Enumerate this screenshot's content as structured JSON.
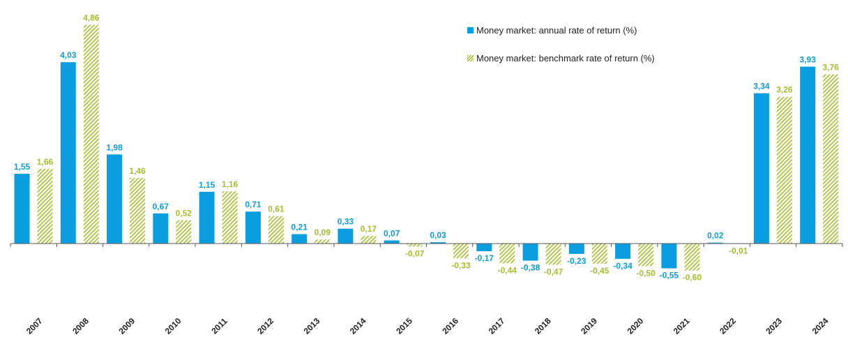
{
  "chart_data": {
    "type": "bar",
    "categories": [
      "2007",
      "2008",
      "2009",
      "2010",
      "2011",
      "2012",
      "2013",
      "2014",
      "2015",
      "2016",
      "2017",
      "2018",
      "2019",
      "2020",
      "2021",
      "2022",
      "2023",
      "2024"
    ],
    "series": [
      {
        "name": "Money market: annual rate of return (%)",
        "color": "#0a9ee0",
        "style": "solid",
        "values": [
          1.55,
          4.03,
          1.98,
          0.67,
          1.15,
          0.71,
          0.21,
          0.33,
          0.07,
          0.03,
          -0.17,
          -0.38,
          -0.23,
          -0.34,
          -0.55,
          0.02,
          3.34,
          3.93
        ],
        "labels": [
          "1,55",
          "4,03",
          "1,98",
          "0,67",
          "1,15",
          "0,71",
          "0,21",
          "0,33",
          "0,07",
          "0,03",
          "-0,17",
          "-0,38",
          "-0,23",
          "-0,34",
          "-0,55",
          "0,02",
          "3,34",
          "3,93"
        ]
      },
      {
        "name": "Money market: benchmark rate of return (%)",
        "color": "#a9bd2c",
        "style": "hatched",
        "values": [
          1.66,
          4.86,
          1.46,
          0.52,
          1.16,
          0.61,
          0.09,
          0.17,
          -0.07,
          -0.33,
          -0.44,
          -0.47,
          -0.45,
          -0.5,
          -0.6,
          -0.01,
          3.26,
          3.76
        ],
        "labels": [
          "1,66",
          "4,86",
          "1,46",
          "0,52",
          "1,16",
          "0,61",
          "0,09",
          "0,17",
          "-0,07",
          "-0,33",
          "-0,44",
          "-0,47",
          "-0,45",
          "-0,50",
          "-0,60",
          "-0,01",
          "3,26",
          "3,76"
        ]
      }
    ],
    "title": "",
    "xlabel": "",
    "ylabel": "",
    "grid": false,
    "legend_position": "top-right"
  }
}
